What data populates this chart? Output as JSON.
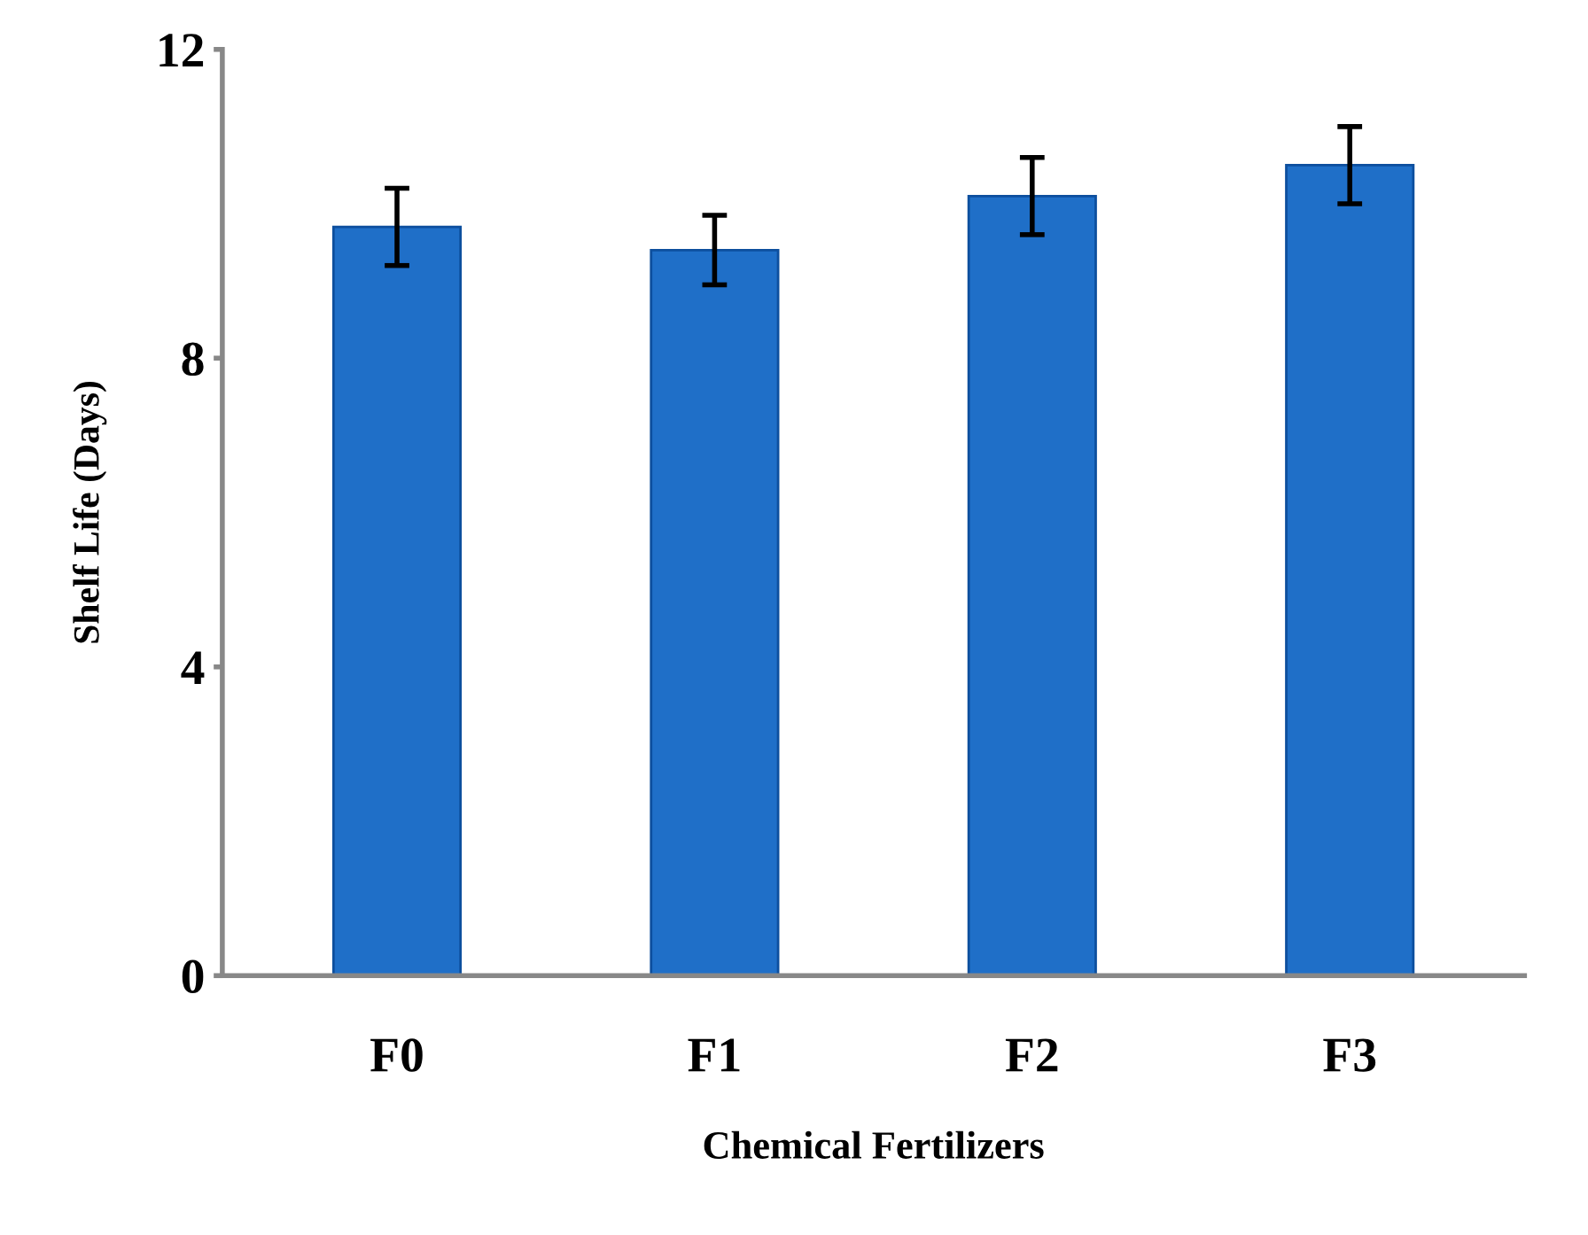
{
  "chart_data": {
    "type": "bar",
    "xlabel": "Chemical Fertilizers",
    "ylabel": "Shelf Life (Days)",
    "categories": [
      "F0",
      "F1",
      "F2",
      "F3"
    ],
    "values": [
      9.7,
      9.4,
      10.1,
      10.5
    ],
    "errors": [
      0.5,
      0.45,
      0.5,
      0.5
    ],
    "color": "#1f6fc8",
    "ylim": [
      0,
      12
    ],
    "yticks": [
      0,
      4,
      8,
      12
    ],
    "grid": false,
    "legend": false
  }
}
